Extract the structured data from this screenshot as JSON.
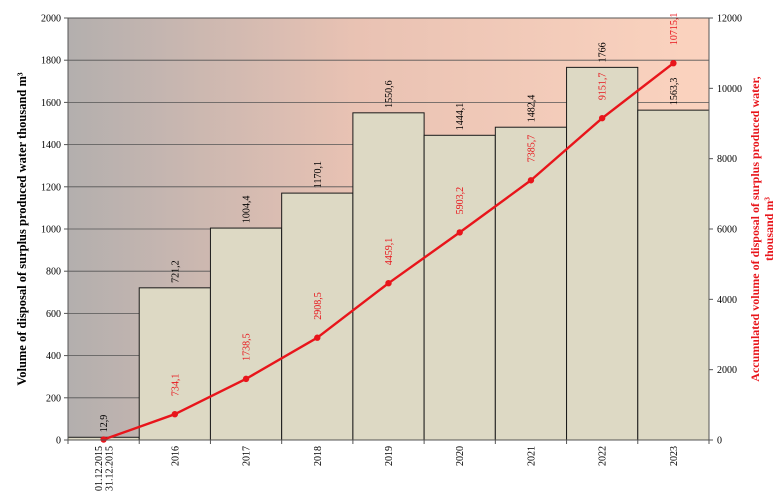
{
  "chart_data": {
    "type": "bar",
    "categories": [
      "01.12.2015\n31.12.2015",
      "2016",
      "2017",
      "2018",
      "2019",
      "2020",
      "2021",
      "2022",
      "2023"
    ],
    "series": [
      {
        "type": "bar",
        "axis": "left",
        "values": [
          12.9,
          721.2,
          1004.4,
          1170.1,
          1550.6,
          1444.1,
          1482.4,
          1766,
          1563.3
        ],
        "labels": [
          "12,9",
          "721,2",
          "1004,4",
          "1170,1",
          "1550,6",
          "1444,1",
          "1482,4",
          "1766",
          "1563,3"
        ],
        "color": "#ddd9c4"
      },
      {
        "type": "line",
        "axis": "right",
        "values": [
          12.9,
          734.1,
          1738.5,
          2908.5,
          4459.1,
          5903.2,
          7385.7,
          9151.7,
          10715.1
        ],
        "labels": [
          "",
          "734,1",
          "1738,5",
          "2908,5",
          "4459,1",
          "5903,2",
          "7385,7",
          "9151,7",
          "10715,1"
        ],
        "color": "#e8151b"
      }
    ],
    "ylabel": "Volume of disposal of surplus produced water thousand m³",
    "y2label": "Accumulated volume of disposal of surplus produced water, thousand m³",
    "ylim": [
      0,
      2000
    ],
    "y2lim": [
      0,
      12000
    ],
    "yticks": [
      "0",
      "200",
      "400",
      "600",
      "800",
      "1000",
      "1200",
      "1400",
      "1600",
      "1800",
      "2000"
    ],
    "y2ticks": [
      "0",
      "2000",
      "4000",
      "6000",
      "8000",
      "10000",
      "12000"
    ],
    "grid": true,
    "legend": "none"
  }
}
